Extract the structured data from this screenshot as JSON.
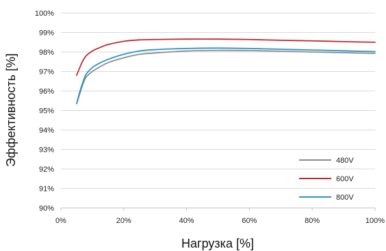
{
  "chart_data": {
    "type": "line",
    "title": "",
    "xlabel": "Нагрузка [%]",
    "ylabel": "Эффективность [%]",
    "xlim": [
      0,
      100
    ],
    "ylim": [
      90,
      100
    ],
    "x_ticks": [
      "0%",
      "20%",
      "40%",
      "60%",
      "80%",
      "100%"
    ],
    "y_ticks": [
      "90%",
      "91%",
      "92%",
      "93%",
      "94%",
      "95%",
      "96%",
      "97%",
      "98%",
      "99%",
      "100%"
    ],
    "grid": true,
    "legend_position": "bottom-right",
    "series": [
      {
        "name": "480V",
        "color": "#8c8c8c",
        "x": [
          5,
          6,
          7,
          8,
          10,
          12,
          15,
          20,
          25,
          30,
          40,
          50,
          60,
          70,
          80,
          90,
          100
        ],
        "y": [
          95.35,
          95.85,
          96.35,
          96.7,
          97.0,
          97.2,
          97.45,
          97.7,
          97.88,
          97.95,
          98.05,
          98.08,
          98.07,
          98.04,
          98.0,
          97.96,
          97.93
        ]
      },
      {
        "name": "600V",
        "color": "#c0282d",
        "x": [
          5,
          6,
          7,
          8,
          10,
          12,
          15,
          20,
          25,
          30,
          40,
          50,
          60,
          70,
          80,
          90,
          100
        ],
        "y": [
          96.8,
          97.2,
          97.55,
          97.8,
          98.05,
          98.2,
          98.38,
          98.55,
          98.62,
          98.64,
          98.66,
          98.66,
          98.64,
          98.6,
          98.57,
          98.53,
          98.5
        ]
      },
      {
        "name": "800V",
        "color": "#2b93c6",
        "x": [
          5,
          6,
          7,
          8,
          10,
          12,
          15,
          20,
          25,
          30,
          40,
          50,
          60,
          70,
          80,
          90,
          100
        ],
        "y": [
          95.35,
          95.95,
          96.45,
          96.85,
          97.2,
          97.4,
          97.62,
          97.88,
          98.05,
          98.12,
          98.18,
          98.2,
          98.18,
          98.14,
          98.1,
          98.06,
          98.02
        ]
      }
    ]
  }
}
